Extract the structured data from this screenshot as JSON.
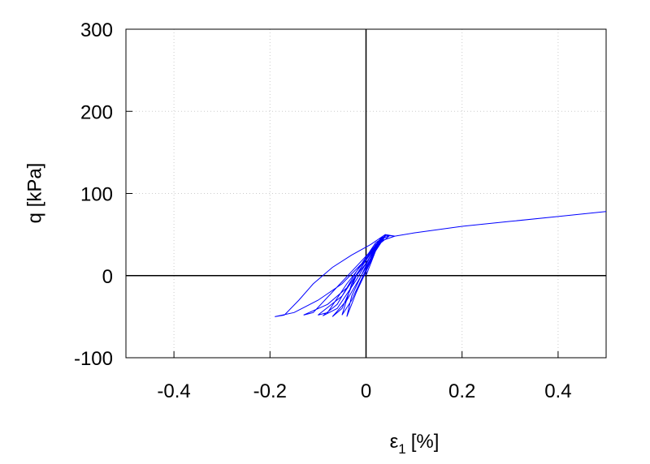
{
  "chart_data": {
    "type": "line",
    "xlabel": [
      "ε",
      "1",
      "[%]"
    ],
    "ylabel": "q [kPa]",
    "xlim": [
      -0.5,
      0.5
    ],
    "xticks": [
      -0.4,
      -0.2,
      0,
      0.2,
      0.4
    ],
    "ylim": [
      -100,
      300
    ],
    "yticks": [
      -100,
      0,
      100,
      200,
      300
    ],
    "grid": true,
    "zero_lines": true,
    "series": [
      {
        "color": "#0000ff",
        "x": [
          0,
          0.02,
          0.04,
          0.03,
          0,
          -0.05,
          -0.1,
          -0.15,
          -0.19,
          -0.17,
          -0.14,
          -0.11,
          -0.07,
          -0.03,
          0.01,
          0.04,
          0.06,
          0.03,
          0,
          -0.04,
          -0.08,
          -0.13,
          -0.11,
          -0.07,
          -0.03,
          0.01,
          0.05,
          0.03,
          -0.01,
          -0.05,
          -0.1,
          -0.08,
          -0.04,
          0,
          0.04,
          0.02,
          -0.02,
          -0.06,
          -0.09,
          -0.06,
          -0.02,
          0.02,
          0.04,
          0.02,
          -0.02,
          -0.05,
          -0.07,
          -0.04,
          0,
          0.03,
          0.01,
          -0.03,
          -0.05,
          -0.03,
          0.01,
          0.035,
          0.01,
          -0.03,
          -0.04,
          -0.02,
          0.02,
          0.04,
          0.06,
          0.1,
          0.2,
          0.3,
          0.4,
          0.5
        ],
        "values": [
          0,
          30,
          48,
          45,
          20,
          -10,
          -30,
          -45,
          -50,
          -48,
          -30,
          -10,
          10,
          25,
          38,
          50,
          48,
          42,
          15,
          -15,
          -35,
          -48,
          -45,
          -20,
          5,
          30,
          49,
          44,
          10,
          -25,
          -48,
          -45,
          -10,
          20,
          48,
          40,
          5,
          -35,
          -49,
          -40,
          -5,
          35,
          49,
          38,
          0,
          -40,
          -50,
          -30,
          10,
          45,
          30,
          -10,
          -48,
          -30,
          20,
          48,
          25,
          -25,
          -50,
          -20,
          30,
          49,
          48,
          52,
          60,
          66,
          72,
          78
        ]
      }
    ]
  }
}
